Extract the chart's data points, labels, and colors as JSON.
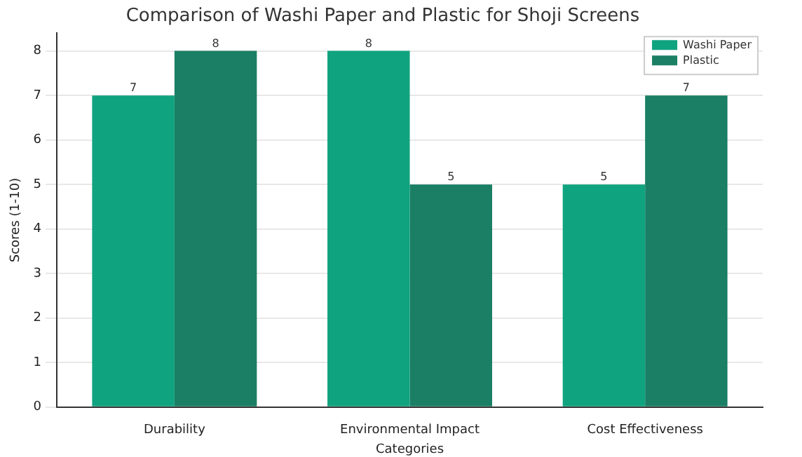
{
  "chart_data": {
    "type": "bar",
    "title": "Comparison of Washi Paper and Plastic for Shoji Screens",
    "xlabel": "Categories",
    "ylabel": "Scores (1-10)",
    "categories": [
      "Durability",
      "Environmental Impact",
      "Cost Effectiveness"
    ],
    "series": [
      {
        "name": "Washi Paper",
        "color": "#10a37f",
        "values": [
          7,
          8,
          5
        ]
      },
      {
        "name": "Plastic",
        "color": "#1a7f64",
        "values": [
          8,
          5,
          7
        ]
      }
    ],
    "ylim": [
      0,
      8.4
    ],
    "yticks": [
      0,
      1,
      2,
      3,
      4,
      5,
      6,
      7,
      8
    ],
    "grid": "y",
    "legend": "top right",
    "data_labels": true
  }
}
